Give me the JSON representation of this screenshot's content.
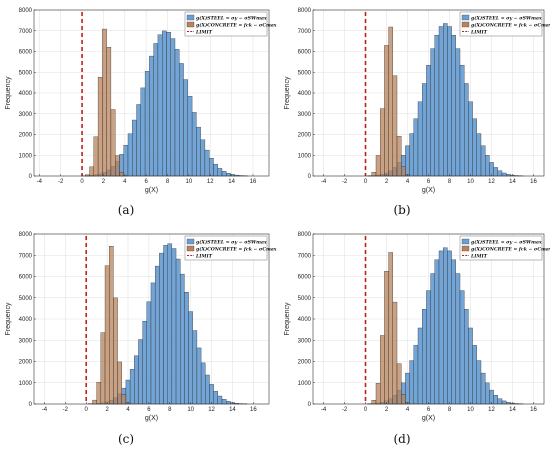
{
  "chart_data": [
    {
      "panel_label": "(a)",
      "type": "bar",
      "xlabel": "g(X)",
      "ylabel": "Frequency",
      "xlim": [
        -4.5,
        17.5
      ],
      "ylim": [
        0,
        8000
      ],
      "xticks": [
        -4,
        -2,
        0,
        2,
        4,
        6,
        8,
        10,
        12,
        14,
        16
      ],
      "yticks": [
        0,
        1000,
        2000,
        3000,
        4000,
        5000,
        6000,
        7000,
        8000
      ],
      "grid": true,
      "legend_position": "top-right",
      "bin_width": 0.4,
      "series": [
        {
          "name": "g(X)STEEL = σy − σSWmax",
          "color": "#6b9fd4",
          "kind": "bins",
          "mean": 7.8,
          "sd": 2.1,
          "peak": 7000
        },
        {
          "name": "g(X)CONCRETE = fck − σCmax",
          "color": "#b8825a",
          "kind": "bins",
          "mean": 2.2,
          "sd": 0.55,
          "peak": 7200
        },
        {
          "name": "LIMIT",
          "color": "#c0201a",
          "kind": "vline",
          "x": 0
        }
      ]
    },
    {
      "panel_label": "(b)",
      "type": "bar",
      "xlabel": "g(X)",
      "ylabel": "Frequency",
      "xlim": [
        -5,
        17
      ],
      "ylim": [
        0,
        8000
      ],
      "xticks": [
        -4,
        -2,
        0,
        2,
        4,
        6,
        8,
        10,
        12,
        14,
        16
      ],
      "yticks": [
        0,
        1000,
        2000,
        3000,
        4000,
        5000,
        6000,
        7000,
        8000
      ],
      "grid": true,
      "legend_position": "top-right",
      "bin_width": 0.4,
      "series": [
        {
          "name": "g(X)STEEL = σy − σSWmax",
          "color": "#6b9fd4",
          "kind": "bins",
          "mean": 7.6,
          "sd": 2.0,
          "peak": 7350
        },
        {
          "name": "g(X)CONCRETE = fck − σCmax",
          "color": "#b8825a",
          "kind": "bins",
          "mean": 2.3,
          "sd": 0.55,
          "peak": 7300
        },
        {
          "name": "LIMIT",
          "color": "#c0201a",
          "kind": "vline",
          "x": 0
        }
      ]
    },
    {
      "panel_label": "(c)",
      "type": "bar",
      "xlabel": "g(X)",
      "ylabel": "Frequency",
      "xlim": [
        -5,
        17.5
      ],
      "ylim": [
        0,
        8000
      ],
      "xticks": [
        -4,
        -2,
        0,
        2,
        4,
        6,
        8,
        10,
        12,
        14,
        16
      ],
      "yticks": [
        0,
        1000,
        2000,
        3000,
        4000,
        5000,
        6000,
        7000,
        8000
      ],
      "grid": true,
      "legend_position": "top-right",
      "bin_width": 0.4,
      "series": [
        {
          "name": "g(X)STEEL = σy − σSWmax",
          "color": "#6b9fd4",
          "kind": "bins",
          "mean": 7.9,
          "sd": 2.0,
          "peak": 7550
        },
        {
          "name": "g(X)CONCRETE = fck − σCmax",
          "color": "#b8825a",
          "kind": "bins",
          "mean": 2.3,
          "sd": 0.55,
          "peak": 7550
        },
        {
          "name": "LIMIT",
          "color": "#c0201a",
          "kind": "vline",
          "x": 0
        }
      ]
    },
    {
      "panel_label": "(d)",
      "type": "bar",
      "xlabel": "g(X)",
      "ylabel": "Frequency",
      "xlim": [
        -5,
        17
      ],
      "ylim": [
        0,
        8000
      ],
      "xticks": [
        -4,
        -2,
        0,
        2,
        4,
        6,
        8,
        10,
        12,
        14,
        16
      ],
      "yticks": [
        0,
        1000,
        2000,
        3000,
        4000,
        5000,
        6000,
        7000,
        8000
      ],
      "grid": true,
      "legend_position": "top-right",
      "bin_width": 0.4,
      "series": [
        {
          "name": "g(X)STEEL = σy − σSWmax",
          "color": "#6b9fd4",
          "kind": "bins",
          "mean": 7.6,
          "sd": 2.0,
          "peak": 7350
        },
        {
          "name": "g(X)CONCRETE = fck − σCmax",
          "color": "#b8825a",
          "kind": "bins",
          "mean": 2.3,
          "sd": 0.55,
          "peak": 7250
        },
        {
          "name": "LIMIT",
          "color": "#c0201a",
          "kind": "vline",
          "x": 0
        }
      ]
    }
  ]
}
